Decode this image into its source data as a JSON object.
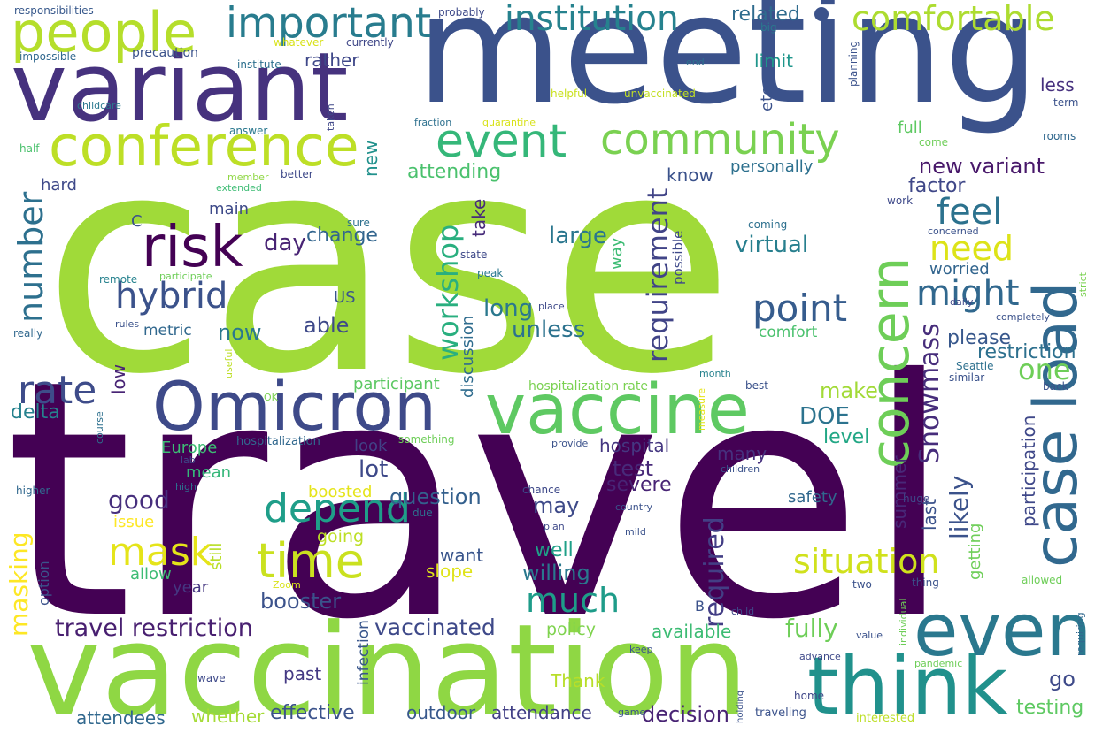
{
  "words": [
    {
      "text": "case",
      "color": "#a0da39"
    },
    {
      "text": "travel",
      "color": "#440154"
    },
    {
      "text": "meeting",
      "color": "#3b528b"
    },
    {
      "text": "vaccination",
      "color": "#8fd744"
    },
    {
      "text": "variant",
      "color": "#46327e"
    },
    {
      "text": "vaccine",
      "color": "#5ec962"
    },
    {
      "text": "Omicron",
      "color": "#3e4a89"
    },
    {
      "text": "people",
      "color": "#b5de2b"
    },
    {
      "text": "conference",
      "color": "#bddf26"
    },
    {
      "text": "think",
      "color": "#21918c"
    },
    {
      "text": "even",
      "color": "#2a788e"
    },
    {
      "text": "case load",
      "color": "#31688e"
    },
    {
      "text": "concern",
      "color": "#6ece58"
    },
    {
      "text": "event",
      "color": "#35b779"
    },
    {
      "text": "community",
      "color": "#7ad151"
    },
    {
      "text": "risk",
      "color": "#440154"
    },
    {
      "text": "important",
      "color": "#287c8e"
    },
    {
      "text": "institution",
      "color": "#26828e"
    },
    {
      "text": "comfortable",
      "color": "#addc30"
    },
    {
      "text": "hybrid",
      "color": "#3b528b"
    },
    {
      "text": "point",
      "color": "#365c8d"
    },
    {
      "text": "time",
      "color": "#cae11f"
    },
    {
      "text": "depend",
      "color": "#1f9e89"
    },
    {
      "text": "rate",
      "color": "#3e4c8a"
    },
    {
      "text": "mask",
      "color": "#e5e419"
    },
    {
      "text": "situation",
      "color": "#d0e11c"
    },
    {
      "text": "might",
      "color": "#31688e"
    },
    {
      "text": "feel",
      "color": "#2c728e"
    },
    {
      "text": "need",
      "color": "#dde318"
    },
    {
      "text": "number",
      "color": "#2d708e"
    },
    {
      "text": "workshop",
      "color": "#29af7f"
    },
    {
      "text": "requirement",
      "color": "#414487"
    },
    {
      "text": "much",
      "color": "#1e9c89"
    },
    {
      "text": "Snowmass",
      "color": "#472d7b"
    },
    {
      "text": "one",
      "color": "#6ece58"
    },
    {
      "text": "new variant",
      "color": "#48186a"
    },
    {
      "text": "travel restriction",
      "color": "#481f70"
    },
    {
      "text": "vaccinated",
      "color": "#3e4989"
    },
    {
      "text": "required",
      "color": "#433e85"
    },
    {
      "text": "masking",
      "color": "#fde725"
    },
    {
      "text": "related",
      "color": "#2f6c8e"
    },
    {
      "text": "new",
      "color": "#21918c"
    },
    {
      "text": "attending",
      "color": "#4ac16d"
    },
    {
      "text": "fully",
      "color": "#6ece58"
    },
    {
      "text": "likely",
      "color": "#3b528b"
    },
    {
      "text": "unless",
      "color": "#2c728e"
    },
    {
      "text": "long",
      "color": "#2a788e"
    },
    {
      "text": "factor",
      "color": "#3f4788"
    },
    {
      "text": "large",
      "color": "#2a768e"
    },
    {
      "text": "virtual",
      "color": "#277f8e"
    },
    {
      "text": "change",
      "color": "#32658e"
    },
    {
      "text": "day",
      "color": "#482374"
    },
    {
      "text": "DOE",
      "color": "#2c738e"
    },
    {
      "text": "make",
      "color": "#a2da37"
    },
    {
      "text": "question",
      "color": "#34608d"
    },
    {
      "text": "booster",
      "color": "#3b528b"
    },
    {
      "text": "restriction",
      "color": "#2d708e"
    },
    {
      "text": "level",
      "color": "#22a785"
    },
    {
      "text": "please",
      "color": "#38588c"
    },
    {
      "text": "delta",
      "color": "#26828e"
    },
    {
      "text": "well",
      "color": "#1fa088"
    },
    {
      "text": "willing",
      "color": "#2a788e"
    },
    {
      "text": "may",
      "color": "#3e4a89"
    },
    {
      "text": "test",
      "color": "#482979"
    },
    {
      "text": "good",
      "color": "#472f7d"
    },
    {
      "text": "severe",
      "color": "#482475"
    },
    {
      "text": "now",
      "color": "#2a788e"
    },
    {
      "text": "able",
      "color": "#3e4989"
    },
    {
      "text": "lot",
      "color": "#3e4989"
    },
    {
      "text": "look",
      "color": "#424186"
    },
    {
      "text": "hospital",
      "color": "#453781"
    },
    {
      "text": "go",
      "color": "#3e4a89"
    },
    {
      "text": "testing",
      "color": "#5ec962"
    },
    {
      "text": "decision",
      "color": "#482374"
    },
    {
      "text": "effective",
      "color": "#3b528b"
    },
    {
      "text": "attendance",
      "color": "#424086"
    },
    {
      "text": "outdoor",
      "color": "#38588c"
    },
    {
      "text": "whether",
      "color": "#a5db36"
    },
    {
      "text": "attendees",
      "color": "#31688e"
    },
    {
      "text": "past",
      "color": "#443983"
    },
    {
      "text": "Thank",
      "color": "#b8de29"
    },
    {
      "text": "policy",
      "color": "#7fd34e"
    },
    {
      "text": "available",
      "color": "#3dbc74"
    },
    {
      "text": "want",
      "color": "#39558c"
    },
    {
      "text": "slope",
      "color": "#dfe318"
    },
    {
      "text": "participant",
      "color": "#5cc863"
    },
    {
      "text": "discussion",
      "color": "#2f6c8e"
    },
    {
      "text": "Europe",
      "color": "#3dbc74"
    },
    {
      "text": "mean",
      "color": "#35b779"
    },
    {
      "text": "boosted",
      "color": "#e5e419"
    },
    {
      "text": "going",
      "color": "#bddf26"
    },
    {
      "text": "issue",
      "color": "#fde725"
    },
    {
      "text": "allow",
      "color": "#3dbc74"
    },
    {
      "text": "year",
      "color": "#453781"
    },
    {
      "text": "still",
      "color": "#b8de29"
    },
    {
      "text": "hard",
      "color": "#3e4989"
    },
    {
      "text": "main",
      "color": "#3e4a89"
    },
    {
      "text": "know",
      "color": "#3b528b"
    },
    {
      "text": "personally",
      "color": "#2d708e"
    },
    {
      "text": "take",
      "color": "#472c7a"
    },
    {
      "text": "way",
      "color": "#3dbc74"
    },
    {
      "text": "limit",
      "color": "#1f968b"
    },
    {
      "text": "rather",
      "color": "#3f4889"
    },
    {
      "text": "etc",
      "color": "#3b528b"
    },
    {
      "text": "less",
      "color": "#46307e"
    },
    {
      "text": "full",
      "color": "#5ec962"
    },
    {
      "text": "worried",
      "color": "#32658e"
    },
    {
      "text": "comfort",
      "color": "#4ac16d"
    },
    {
      "text": "metric",
      "color": "#31688e"
    },
    {
      "text": "US",
      "color": "#39568c"
    },
    {
      "text": "C",
      "color": "#3b528b"
    },
    {
      "text": "low",
      "color": "#482475"
    },
    {
      "text": "summer",
      "color": "#482878"
    },
    {
      "text": "last",
      "color": "#3b528b"
    },
    {
      "text": "participation",
      "color": "#3f4889"
    },
    {
      "text": "getting",
      "color": "#6ece58"
    },
    {
      "text": "safety",
      "color": "#31688e"
    },
    {
      "text": "many",
      "color": "#46307e"
    },
    {
      "text": "B",
      "color": "#3b528b"
    },
    {
      "text": "option",
      "color": "#3b528b"
    },
    {
      "text": "infection",
      "color": "#39568c"
    },
    {
      "text": "hospitalization rate",
      "color": "#7ad151"
    },
    {
      "text": "hospitalization",
      "color": "#31688e"
    },
    {
      "text": "possible",
      "color": "#3e4989"
    },
    {
      "text": "responsibilities",
      "color": "#38598c"
    },
    {
      "text": "probably",
      "color": "#3e4a89"
    },
    {
      "text": "whatever",
      "color": "#d8e219"
    },
    {
      "text": "currently",
      "color": "#3f4788"
    },
    {
      "text": "impossible",
      "color": "#31688e"
    },
    {
      "text": "precaution",
      "color": "#3b528b"
    },
    {
      "text": "institute",
      "color": "#2d708e"
    },
    {
      "text": "big",
      "color": "#2a788e"
    },
    {
      "text": "end",
      "color": "#2d708e"
    },
    {
      "text": "planning",
      "color": "#3b528b"
    },
    {
      "text": "helpful",
      "color": "#cae11f"
    },
    {
      "text": "unvaccinated",
      "color": "#c2df23"
    },
    {
      "text": "childcare",
      "color": "#2a788e"
    },
    {
      "text": "taken",
      "color": "#3f4788"
    },
    {
      "text": "fraction",
      "color": "#2d708e"
    },
    {
      "text": "quarantine",
      "color": "#d8e219"
    },
    {
      "text": "term",
      "color": "#3b528b"
    },
    {
      "text": "answer",
      "color": "#2a788e"
    },
    {
      "text": "half",
      "color": "#4ac16d"
    },
    {
      "text": "member",
      "color": "#8fd744"
    },
    {
      "text": "extended",
      "color": "#3dbc74"
    },
    {
      "text": "better",
      "color": "#3e4989"
    },
    {
      "text": "come",
      "color": "#6ece58"
    },
    {
      "text": "rooms",
      "color": "#31688e"
    },
    {
      "text": "work",
      "color": "#3e4989"
    },
    {
      "text": "sure",
      "color": "#2d708e"
    },
    {
      "text": "coming",
      "color": "#2d708e"
    },
    {
      "text": "concerned",
      "color": "#3b528b"
    },
    {
      "text": "state",
      "color": "#3e4989"
    },
    {
      "text": "remote",
      "color": "#26828e"
    },
    {
      "text": "participate",
      "color": "#6ece58"
    },
    {
      "text": "peak",
      "color": "#2a788e"
    },
    {
      "text": "strict",
      "color": "#7ad151"
    },
    {
      "text": "rules",
      "color": "#3b528b"
    },
    {
      "text": "place",
      "color": "#3e4989"
    },
    {
      "text": "daily",
      "color": "#3f4788"
    },
    {
      "text": "completely",
      "color": "#3b528b"
    },
    {
      "text": "really",
      "color": "#31688e"
    },
    {
      "text": "useful",
      "color": "#bddf26"
    },
    {
      "text": "month",
      "color": "#26828e"
    },
    {
      "text": "Seattle",
      "color": "#2d708e"
    },
    {
      "text": "similar",
      "color": "#3b528b"
    },
    {
      "text": "OK",
      "color": "#7ad151"
    },
    {
      "text": "measure",
      "color": "#e5e419"
    },
    {
      "text": "best",
      "color": "#3b528b"
    },
    {
      "text": "back",
      "color": "#3b528b"
    },
    {
      "text": "course",
      "color": "#2d708e"
    },
    {
      "text": "something",
      "color": "#6ece58"
    },
    {
      "text": "provide",
      "color": "#3b528b"
    },
    {
      "text": "lab",
      "color": "#3e4989"
    },
    {
      "text": "higher",
      "color": "#31688e"
    },
    {
      "text": "high",
      "color": "#2d708e"
    },
    {
      "text": "due",
      "color": "#2d708e"
    },
    {
      "text": "chance",
      "color": "#3e4989"
    },
    {
      "text": "country",
      "color": "#3b528b"
    },
    {
      "text": "children",
      "color": "#3b528b"
    },
    {
      "text": "huge",
      "color": "#3f4788"
    },
    {
      "text": "plan",
      "color": "#3e4989"
    },
    {
      "text": "mild",
      "color": "#3b528b"
    },
    {
      "text": "Zoom",
      "color": "#d8e219"
    },
    {
      "text": "two",
      "color": "#3b528b"
    },
    {
      "text": "thing",
      "color": "#3b528b"
    },
    {
      "text": "allowed",
      "color": "#6ece58"
    },
    {
      "text": "individual",
      "color": "#6ece58"
    },
    {
      "text": "child",
      "color": "#3f4788"
    },
    {
      "text": "keep",
      "color": "#3b528b"
    },
    {
      "text": "value",
      "color": "#3b528b"
    },
    {
      "text": "advance",
      "color": "#3e4989"
    },
    {
      "text": "pandemic",
      "color": "#6ece58"
    },
    {
      "text": "requiring",
      "color": "#31688e"
    },
    {
      "text": "wave",
      "color": "#3e4989"
    },
    {
      "text": "holding",
      "color": "#3b528b"
    },
    {
      "text": "home",
      "color": "#3f4788"
    },
    {
      "text": "game",
      "color": "#3b528b"
    },
    {
      "text": "traveling",
      "color": "#3b528b"
    },
    {
      "text": "interested",
      "color": "#bddf26"
    }
  ]
}
